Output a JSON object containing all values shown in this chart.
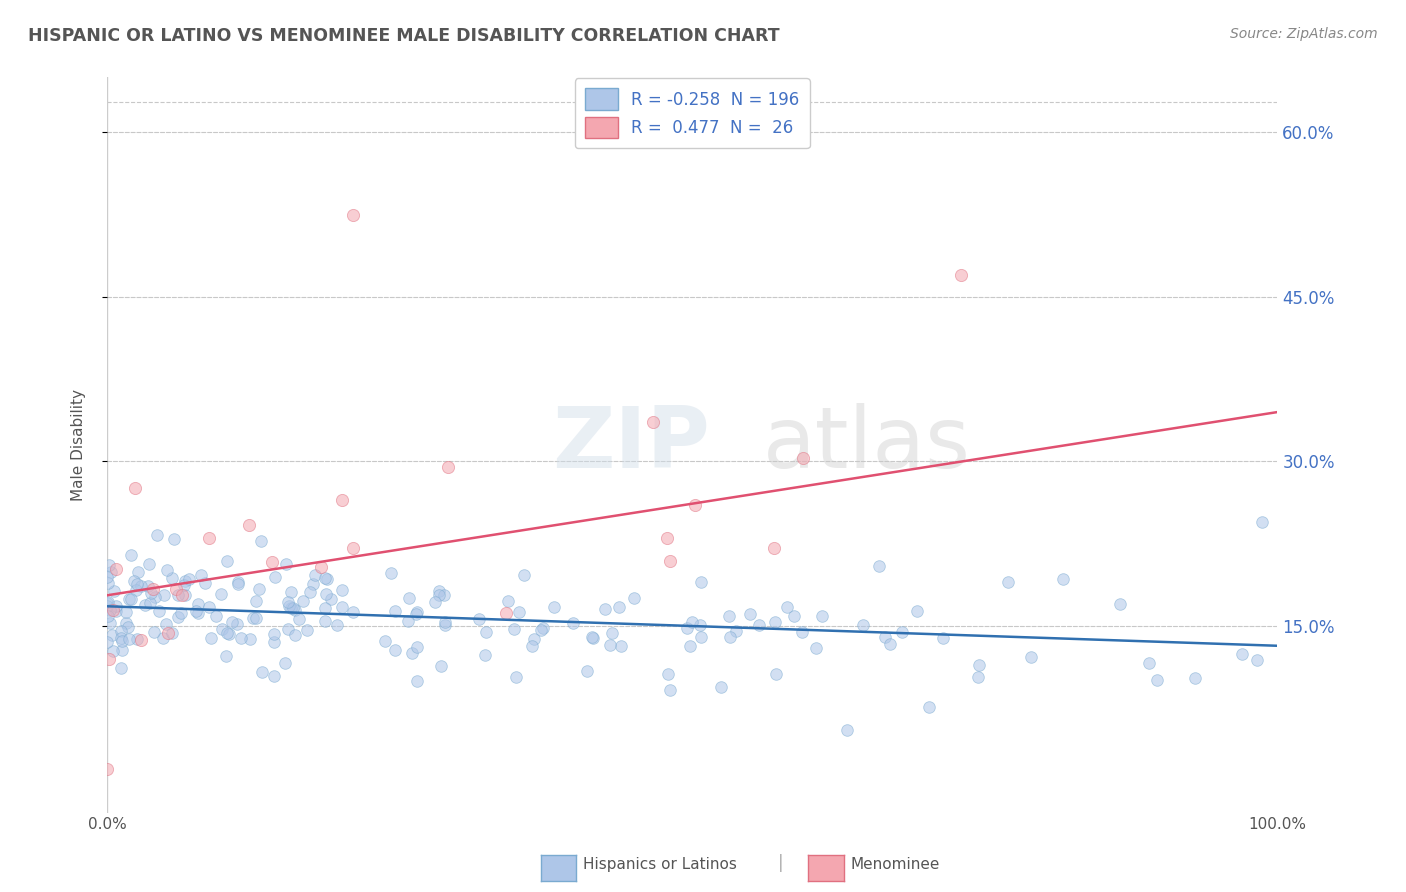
{
  "title": "HISPANIC OR LATINO VS MENOMINEE MALE DISABILITY CORRELATION CHART",
  "source": "Source: ZipAtlas.com",
  "ylabel": "Male Disability",
  "legend_labels": [
    "Hispanics or Latinos",
    "Menominee"
  ],
  "blue_R": -0.258,
  "blue_N": 196,
  "pink_R": 0.477,
  "pink_N": 26,
  "blue_color": "#aec6e8",
  "pink_color": "#f4a7b0",
  "blue_line_color": "#3070b0",
  "pink_line_color": "#e05070",
  "blue_edge_color": "#7aaad0",
  "pink_edge_color": "#e07080",
  "background_color": "#ffffff",
  "grid_color": "#c8c8c8",
  "xlim": [
    0,
    1
  ],
  "ylim": [
    -0.02,
    0.65
  ],
  "yticks": [
    0.15,
    0.3,
    0.45,
    0.6
  ],
  "ytick_labels": [
    "15.0%",
    "30.0%",
    "45.0%",
    "60.0%"
  ],
  "xticks": [
    0.0,
    0.25,
    0.5,
    0.75,
    1.0
  ],
  "xtick_labels": [
    "0.0%",
    "",
    "",
    "",
    "100.0%"
  ],
  "blue_line_x": [
    0.0,
    1.0
  ],
  "blue_line_y": [
    0.168,
    0.132
  ],
  "pink_line_x": [
    0.0,
    1.0
  ],
  "pink_line_y": [
    0.178,
    0.345
  ],
  "watermark_zip": "ZIP",
  "watermark_atlas": "atlas",
  "marker_size": 70,
  "alpha": 0.55,
  "seed": 42
}
